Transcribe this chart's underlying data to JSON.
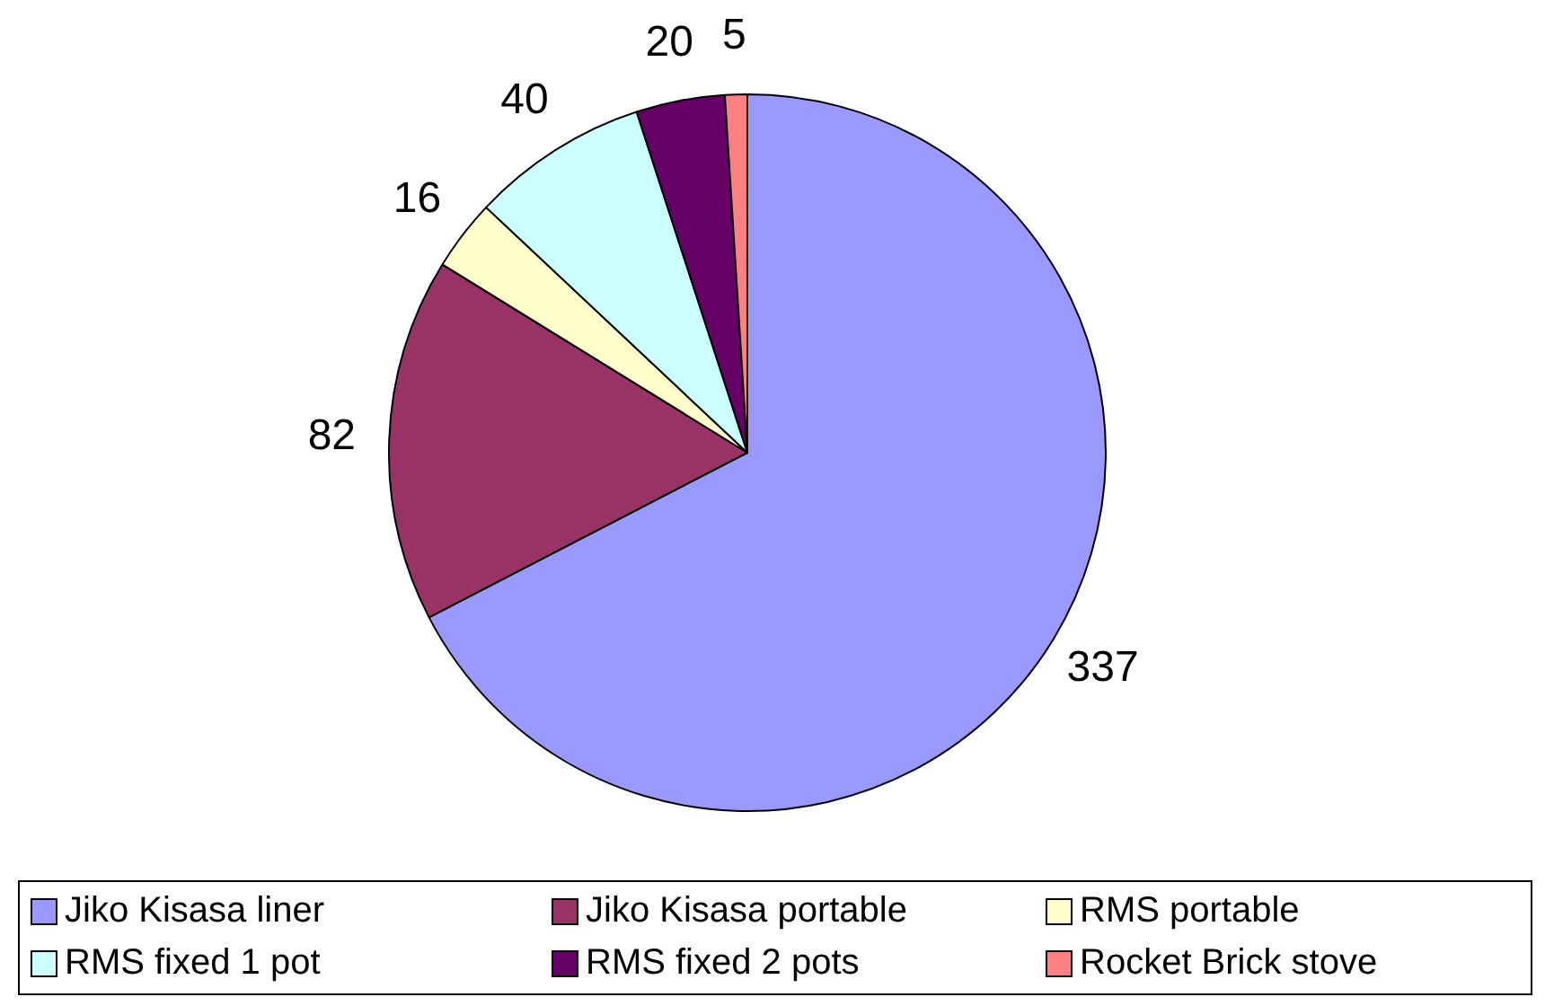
{
  "chart_data": {
    "type": "pie",
    "categories": [
      "Jiko Kisasa liner",
      "Jiko Kisasa portable",
      "RMS portable",
      "RMS fixed 1 pot",
      "RMS fixed 2 pots",
      "Rocket Brick stove"
    ],
    "values": [
      337,
      82,
      16,
      40,
      20,
      5
    ],
    "colors": [
      "#9999ff",
      "#993366",
      "#ffffcc",
      "#ccffff",
      "#660066",
      "#ff8080"
    ],
    "data_labels": true,
    "legend": "bottom"
  }
}
